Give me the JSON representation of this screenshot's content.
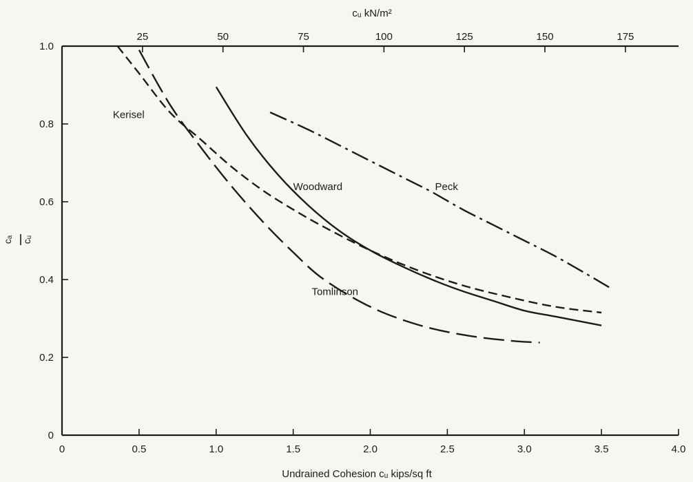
{
  "chart_data": {
    "type": "line",
    "title": "",
    "xlabel": "Undrained Cohesion cᵤ kips/sq ft",
    "top_xlabel": "cᵤ kN/m²",
    "ylabel": {
      "numerator": "cₐ",
      "denominator": "cᵤ"
    },
    "xlim": [
      0,
      4.0
    ],
    "ylim": [
      0,
      1.0
    ],
    "top_xlim": [
      0,
      191.5
    ],
    "x_ticks": [
      "0",
      "0.5",
      "1.0",
      "1.5",
      "2.0",
      "2.5",
      "3.0",
      "3.5",
      "4.0"
    ],
    "x_tick_values": [
      0,
      0.5,
      1.0,
      1.5,
      2.0,
      2.5,
      3.0,
      3.5,
      4.0
    ],
    "top_x_ticks": [
      "25",
      "50",
      "75",
      "100",
      "125",
      "150",
      "175"
    ],
    "top_x_tick_values": [
      25,
      50,
      75,
      100,
      125,
      150,
      175
    ],
    "y_ticks": [
      "0",
      "0.2",
      "0.4",
      "0.6",
      "0.8",
      "1.0"
    ],
    "y_tick_values": [
      0,
      0.2,
      0.4,
      0.6,
      0.8,
      1.0
    ],
    "grid": false,
    "series": [
      {
        "name": "Kerisel",
        "style": "short-dash",
        "x": [
          0.36,
          0.5,
          0.7,
          0.9,
          1.1,
          1.3,
          1.5,
          1.7,
          2.0,
          2.3,
          2.6,
          2.9,
          3.2,
          3.5
        ],
        "y": [
          1.0,
          0.93,
          0.83,
          0.76,
          0.69,
          0.63,
          0.58,
          0.535,
          0.475,
          0.425,
          0.385,
          0.355,
          0.33,
          0.315
        ]
      },
      {
        "name": "Tomlinson",
        "style": "long-dash",
        "x": [
          0.5,
          0.7,
          0.9,
          1.1,
          1.3,
          1.5,
          1.7,
          2.0,
          2.3,
          2.6,
          2.9,
          3.1
        ],
        "y": [
          0.99,
          0.85,
          0.74,
          0.64,
          0.55,
          0.47,
          0.4,
          0.33,
          0.285,
          0.258,
          0.243,
          0.238
        ]
      },
      {
        "name": "Woodward",
        "style": "solid",
        "x": [
          1.0,
          1.2,
          1.4,
          1.6,
          1.8,
          2.0,
          2.2,
          2.4,
          2.6,
          2.8,
          3.0,
          3.2,
          3.5
        ],
        "y": [
          0.895,
          0.77,
          0.67,
          0.59,
          0.525,
          0.475,
          0.435,
          0.4,
          0.37,
          0.345,
          0.32,
          0.305,
          0.282
        ]
      },
      {
        "name": "Peck",
        "style": "dash-dot",
        "x": [
          1.35,
          1.6,
          1.8,
          2.0,
          2.2,
          2.4,
          2.6,
          2.8,
          3.0,
          3.2,
          3.4,
          3.55
        ],
        "y": [
          0.83,
          0.785,
          0.745,
          0.705,
          0.665,
          0.625,
          0.58,
          0.54,
          0.5,
          0.46,
          0.415,
          0.38
        ]
      }
    ],
    "annotations": [
      {
        "text": "Kerisel",
        "x": 0.33,
        "y": 0.815
      },
      {
        "text": "Woodward",
        "x": 1.5,
        "y": 0.63
      },
      {
        "text": "Peck",
        "x": 2.42,
        "y": 0.63
      },
      {
        "text": "Tomlinson",
        "x": 1.62,
        "y": 0.36
      }
    ],
    "colors": {
      "ink": "#1b1b1b",
      "paper": "#f7f6f2"
    }
  }
}
